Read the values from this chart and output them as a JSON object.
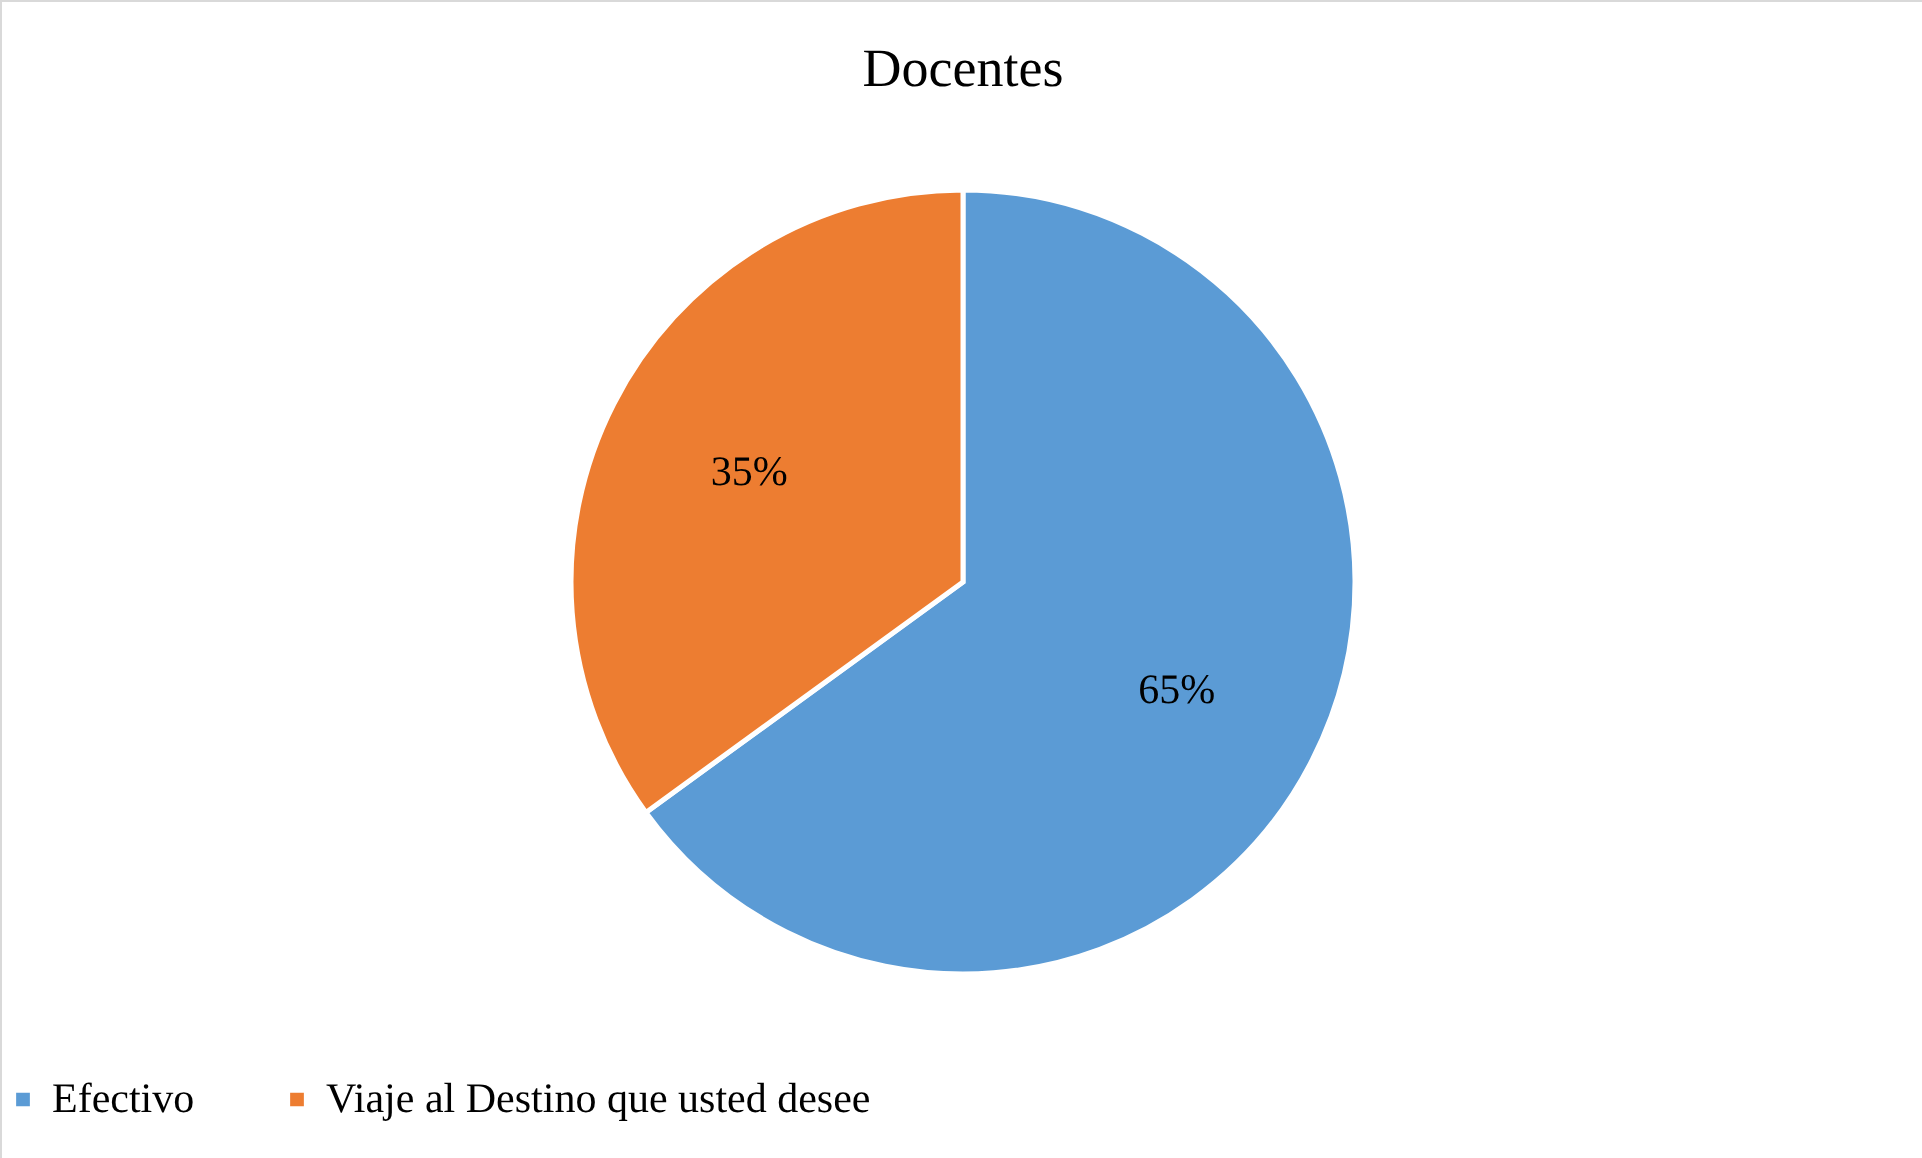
{
  "chart_data": {
    "type": "pie",
    "title": "Docentes",
    "categories": [
      "Efectivo",
      "Viaje al Destino que usted desee"
    ],
    "values": [
      65,
      35
    ],
    "colors": [
      "#5b9bd5",
      "#ed7d31"
    ],
    "value_labels": [
      "65%",
      "35%"
    ],
    "legend": "bottom"
  }
}
